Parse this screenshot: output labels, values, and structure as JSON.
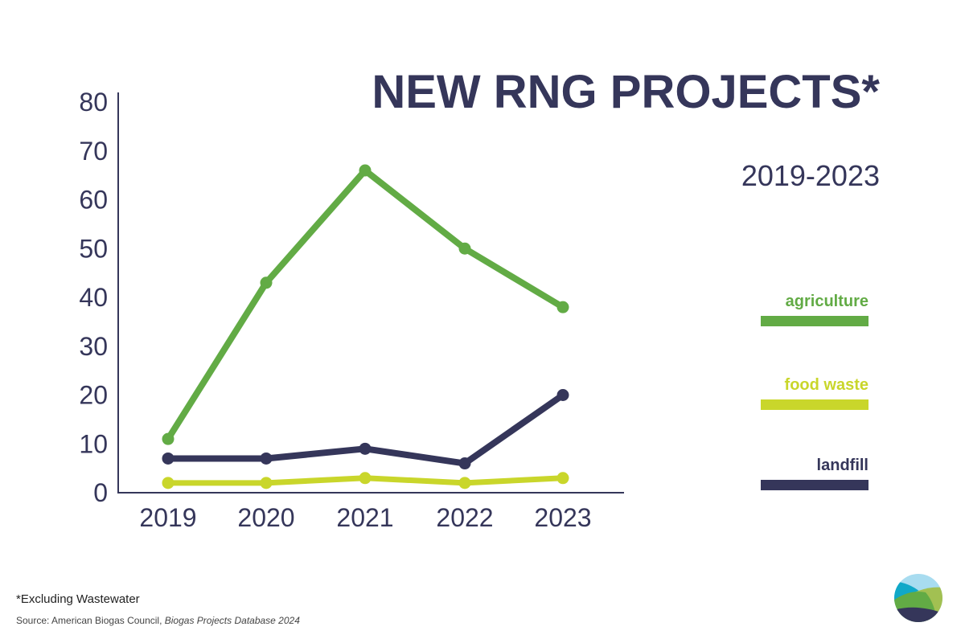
{
  "chart_data": {
    "type": "line",
    "title": "NEW RNG PROJECTS*",
    "subtitle": "2019-2023",
    "categories": [
      "2019",
      "2020",
      "2021",
      "2022",
      "2023"
    ],
    "ylim": [
      0,
      80
    ],
    "yticks": [
      "0",
      "10",
      "20",
      "30",
      "40",
      "50",
      "60",
      "70",
      "80"
    ],
    "grid": false,
    "legend_position": "right",
    "series": [
      {
        "name": "agriculture",
        "color": "#62ab45",
        "values": [
          11,
          43,
          66,
          50,
          38
        ]
      },
      {
        "name": "food waste",
        "color": "#c9d62b",
        "values": [
          2,
          2,
          3,
          2,
          3
        ]
      },
      {
        "name": "landfill",
        "color": "#35365a",
        "values": [
          7,
          7,
          9,
          6,
          20
        ]
      }
    ]
  },
  "footnote": "*Excluding Wastewater",
  "source": {
    "prefix": "Source: American Biogas Council, ",
    "title": "Biogas Projects Database 2024"
  }
}
